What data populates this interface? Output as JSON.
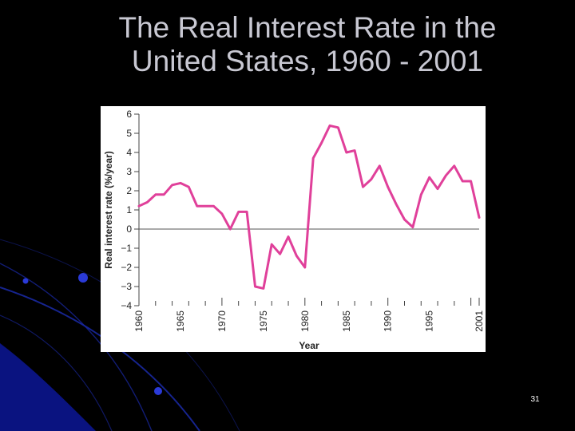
{
  "slide": {
    "title_lines": [
      "The Real Interest Rate in the",
      "United States, 1960 - 2001"
    ],
    "slide_number": "31",
    "background_color": "#000000",
    "title_color": "#c8c8d2",
    "decoration_color": "#1a2aa8"
  },
  "chart_data": {
    "type": "line",
    "title": "",
    "xlabel": "Year",
    "ylabel": "Real interest rate (%/year)",
    "xlim": [
      1960,
      2001
    ],
    "ylim": [
      -4,
      6
    ],
    "x_ticks": [
      "1960",
      "1965",
      "1970",
      "1975",
      "1980",
      "1985",
      "1990",
      "1995",
      "2001"
    ],
    "y_ticks": [
      "6",
      "5",
      "4",
      "3",
      "2",
      "1",
      "0",
      "−1",
      "−2",
      "−3",
      "−4"
    ],
    "grid": false,
    "reference_line_y": 0,
    "line_color": "#e0409a",
    "series": [
      {
        "x": [
          1960,
          1961,
          1962,
          1963,
          1964,
          1965,
          1966,
          1967,
          1968,
          1969,
          1970,
          1971,
          1972,
          1973,
          1974,
          1975,
          1976,
          1977,
          1978,
          1979,
          1980,
          1981,
          1982,
          1983,
          1984,
          1985,
          1986,
          1987,
          1988,
          1989,
          1990,
          1991,
          1992,
          1993,
          1994,
          1995,
          1996,
          1997,
          1998,
          1999,
          2000,
          2001
        ],
        "y": [
          1.2,
          1.4,
          1.8,
          1.8,
          2.3,
          2.4,
          2.2,
          1.2,
          1.2,
          1.2,
          0.8,
          0.0,
          0.9,
          0.9,
          -3.0,
          -3.1,
          -0.8,
          -1.3,
          -0.4,
          -1.4,
          -2.0,
          3.7,
          4.5,
          5.4,
          5.3,
          4.0,
          4.1,
          2.2,
          2.6,
          3.3,
          2.2,
          1.3,
          0.5,
          0.1,
          1.8,
          2.7,
          2.1,
          2.8,
          3.3,
          2.5,
          2.5,
          0.6
        ]
      }
    ]
  }
}
